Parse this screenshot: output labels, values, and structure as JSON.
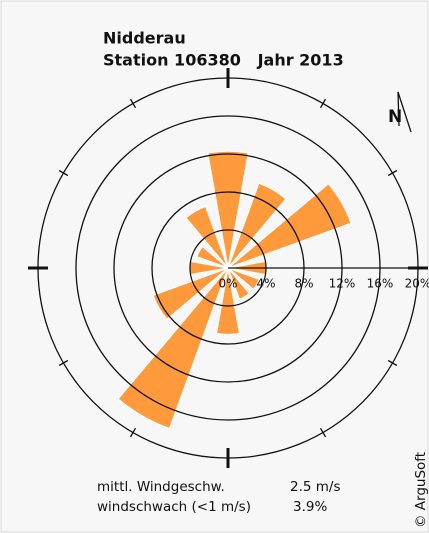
{
  "chart_data": {
    "type": "windrose",
    "title": "Nidderau",
    "subtitle": "Station 106380   Jahr 2013",
    "x": [
      0,
      30,
      60,
      90,
      120,
      150,
      180,
      210,
      240,
      270,
      300,
      330
    ],
    "values": [
      12.3,
      9.5,
      13.8,
      4.0,
      3.5,
      3.5,
      7.0,
      18.0,
      8.4,
      4.0,
      3.5,
      6.9
    ],
    "color": "#ff9a3c",
    "rlim": [
      0,
      20
    ],
    "rticks": [
      {
        "value": 0,
        "label": "0%"
      },
      {
        "value": 4,
        "label": "4%"
      },
      {
        "value": 8,
        "label": "8%"
      },
      {
        "value": 12,
        "label": "12%"
      },
      {
        "value": 16,
        "label": "16%"
      },
      {
        "value": 20,
        "label": "20%"
      }
    ],
    "north_label": "N",
    "stats": [
      {
        "label": "mittl. Windgeschw.",
        "value": "2.5 m/s"
      },
      {
        "label": "windschwach (<1 m/s)",
        "value": "3.9%"
      }
    ],
    "copyright": "© ArguSoft"
  }
}
